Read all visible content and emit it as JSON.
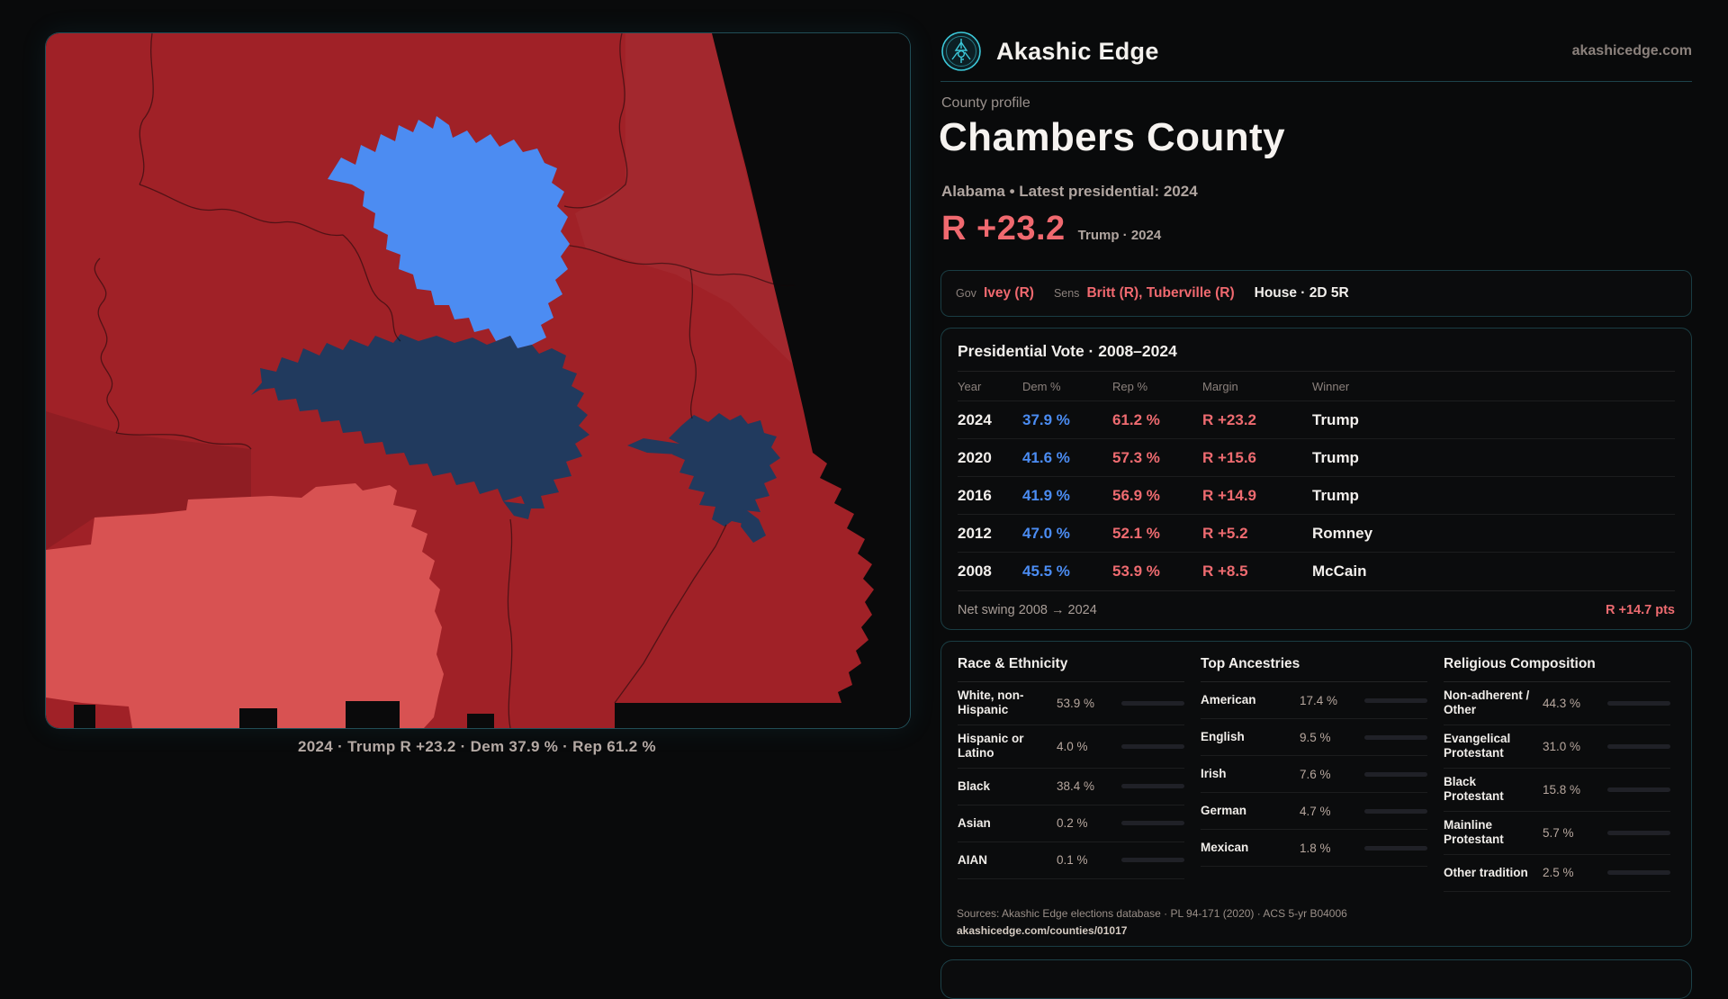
{
  "brand": {
    "name": "Akashic Edge",
    "domain": "akashicedge.com",
    "accent": "#3cc9da"
  },
  "header": {
    "eyebrow": "County profile",
    "title": "Chambers County",
    "subtitle": "Alabama • Latest presidential: 2024",
    "headline_margin": "R +23.2",
    "headline_note": "Trump · 2024",
    "margin_color": "#f0696f"
  },
  "officials": {
    "gov_label": "Gov",
    "gov_value": "Ivey (R)",
    "sens_label": "Sens",
    "sens_value": "Britt (R), Tuberville (R)",
    "house_value": "House · 2D 5R"
  },
  "vote_table": {
    "title": "Presidential Vote · 2008–2024",
    "columns": [
      "Year",
      "Dem %",
      "Rep %",
      "Margin",
      "Winner"
    ],
    "rows": [
      {
        "year": "2024",
        "dem": "37.9 %",
        "rep": "61.2 %",
        "margin": "R +23.2",
        "winner": "Trump"
      },
      {
        "year": "2020",
        "dem": "41.6 %",
        "rep": "57.3 %",
        "margin": "R +15.6",
        "winner": "Trump"
      },
      {
        "year": "2016",
        "dem": "41.9 %",
        "rep": "56.9 %",
        "margin": "R +14.9",
        "winner": "Trump"
      },
      {
        "year": "2012",
        "dem": "47.0 %",
        "rep": "52.1 %",
        "margin": "R +5.2",
        "winner": "Romney"
      },
      {
        "year": "2008",
        "dem": "45.5 %",
        "rep": "53.9 %",
        "margin": "R +8.5",
        "winner": "McCain"
      }
    ],
    "footer_label": "Net swing 2008 → 2024",
    "footer_value": "R +14.7 pts",
    "dem_color": "#4b8cf2",
    "rep_color": "#ee6b70"
  },
  "demographics": {
    "race": {
      "title": "Race & Ethnicity",
      "rows": [
        {
          "label": "White, non-Hispanic",
          "value": "53.9 %",
          "pct": 53.9,
          "color": "#8fa7c9"
        },
        {
          "label": "Hispanic or Latino",
          "value": "4.0 %",
          "pct": 4.0,
          "color": "#dd8f1c"
        },
        {
          "label": "Black",
          "value": "38.4 %",
          "pct": 38.4,
          "color": "#8473e4"
        },
        {
          "label": "Asian",
          "value": "0.2 %",
          "pct": 0.2,
          "color": "#8fa7c9"
        },
        {
          "label": "AIAN",
          "value": "0.1 %",
          "pct": 0.1,
          "color": "#8fa7c9"
        }
      ]
    },
    "ancestries": {
      "title": "Top Ancestries",
      "rows": [
        {
          "label": "American",
          "value": "17.4 %",
          "pct": 17.4,
          "color": "#8fa7c9"
        },
        {
          "label": "English",
          "value": "9.5 %",
          "pct": 9.5,
          "color": "#8fa7c9"
        },
        {
          "label": "Irish",
          "value": "7.6 %",
          "pct": 7.6,
          "color": "#8fa7c9"
        },
        {
          "label": "German",
          "value": "4.7 %",
          "pct": 4.7,
          "color": "#8fa7c9"
        },
        {
          "label": "Mexican",
          "value": "1.8 %",
          "pct": 1.8,
          "color": "#dd8f1c"
        }
      ]
    },
    "religion": {
      "title": "Religious Composition",
      "rows": [
        {
          "label": "Non-adherent / Other",
          "value": "44.3 %",
          "pct": 44.3,
          "color": "#6a7890"
        },
        {
          "label": "Evangelical Protestant",
          "value": "31.0 %",
          "pct": 31.0,
          "color": "#e06468"
        },
        {
          "label": "Black Protestant",
          "value": "15.8 %",
          "pct": 15.8,
          "color": "#8473e4"
        },
        {
          "label": "Mainline Protestant",
          "value": "5.7 %",
          "pct": 5.7,
          "color": "#4070e0"
        },
        {
          "label": "Other tradition",
          "value": "2.5 %",
          "pct": 2.5,
          "color": "#c6c9d0"
        }
      ]
    },
    "sources_line1": "Sources: Akashic Edge elections database · PL 94-171 (2020) · ACS 5-yr B04006",
    "sources_line2": "akashicedge.com/counties/01017"
  },
  "map": {
    "caption": "2024 · Trump R +23.2 · Dem 37.9 % · Rep 61.2 %",
    "rep_strong": "#a02127",
    "rep_light": "#d85252",
    "dem_bright": "#4c8cf2",
    "dem_dark": "#213a5e",
    "background": "#0a0a0b"
  }
}
